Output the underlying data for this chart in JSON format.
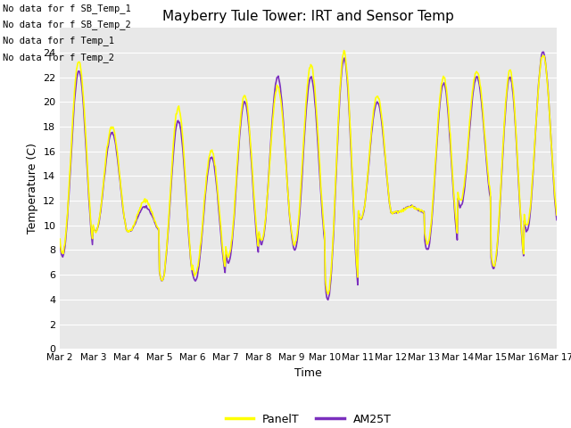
{
  "title": "Mayberry Tule Tower: IRT and Sensor Temp",
  "ylabel": "Temperature (C)",
  "xlabel": "Time",
  "ylim": [
    0,
    26
  ],
  "yticks": [
    0,
    2,
    4,
    6,
    8,
    10,
    12,
    14,
    16,
    18,
    20,
    22,
    24
  ],
  "x_tick_labels": [
    "Mar 2",
    "Mar 3",
    "Mar 4",
    "Mar 5",
    "Mar 6",
    "Mar 7",
    "Mar 8",
    "Mar 9",
    "Mar 10",
    "Mar 11",
    "Mar 12",
    "Mar 13",
    "Mar 14",
    "Mar 15",
    "Mar 16",
    "Mar 17"
  ],
  "panel_color": "#ffff00",
  "am25_color": "#7b2fbe",
  "panel_lw": 1.2,
  "am25_lw": 1.2,
  "background_color": "#e8e8e8",
  "no_data_texts": [
    "No data for f SB_Temp_1",
    "No data for f SB_Temp_2",
    "No data for f Temp_1",
    "No data for f Temp_2"
  ],
  "legend_labels": [
    "PanelT",
    "AM25T"
  ],
  "legend_colors": [
    "#ffff00",
    "#7b2fbe"
  ],
  "daily_highs_panel": [
    23.3,
    18.0,
    12.0,
    19.5,
    16.0,
    20.5,
    21.2,
    23.0,
    24.0,
    20.5,
    11.5,
    22.0,
    22.5,
    22.5,
    23.8,
    15.0
  ],
  "daily_lows_panel": [
    7.8,
    9.5,
    9.5,
    5.5,
    6.0,
    7.5,
    8.8,
    8.5,
    4.5,
    10.5,
    11.0,
    8.5,
    12.0,
    6.7,
    10.0,
    12.0
  ],
  "daily_highs_am25": [
    22.5,
    17.5,
    11.5,
    18.5,
    15.5,
    20.0,
    22.0,
    22.0,
    23.5,
    20.0,
    11.5,
    21.5,
    22.0,
    22.0,
    24.0,
    12.0
  ],
  "daily_lows_am25": [
    7.5,
    9.5,
    9.5,
    5.5,
    5.5,
    7.0,
    8.5,
    8.0,
    4.0,
    10.5,
    11.0,
    8.0,
    11.5,
    6.5,
    9.5,
    12.0
  ],
  "peak_time": 0.58,
  "trough_time": 0.17
}
